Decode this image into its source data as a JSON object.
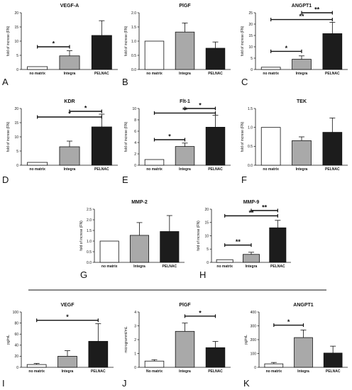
{
  "colors": {
    "no_matrix": "#ffffff",
    "integra": "#a9a9a9",
    "pelnac": "#1c1c1c",
    "ink": "#111111"
  },
  "chart_data": [
    {
      "type": "bar",
      "panel": "A",
      "title": "VEGF-A",
      "ylabel": "fold of increse (FN)",
      "categories": [
        "no matrix",
        "Integra",
        "PELNAC"
      ],
      "values": [
        1,
        4.8,
        12
      ],
      "errors": [
        0,
        1.8,
        5.2
      ],
      "ylim": [
        0,
        20
      ],
      "yticks": [
        "0",
        "5",
        "10",
        "15",
        "20"
      ],
      "significance": [
        {
          "from": 0,
          "to": 1,
          "label": "*",
          "y": 8
        }
      ]
    },
    {
      "type": "bar",
      "panel": "B",
      "title": "PlGF",
      "ylabel": "fold of increse (FN)",
      "categories": [
        "no matrix",
        "Integra",
        "PELNAC"
      ],
      "values": [
        1,
        1.32,
        0.75
      ],
      "errors": [
        0,
        0.32,
        0.22
      ],
      "ylim": [
        0,
        2
      ],
      "yticks": [
        "0.0",
        "0.5",
        "1.0",
        "1.5",
        "2.0"
      ],
      "significance": []
    },
    {
      "type": "bar",
      "panel": "C",
      "title": "ANGPT1",
      "ylabel": "fold of increse (FN)",
      "categories": [
        "no matrix",
        "Integra",
        "PELNAC"
      ],
      "values": [
        1,
        4.5,
        15.8
      ],
      "errors": [
        0,
        1.5,
        5
      ],
      "ylim": [
        0,
        25
      ],
      "yticks": [
        "0",
        "5",
        "10",
        "15",
        "20",
        "25"
      ],
      "significance": [
        {
          "from": 0,
          "to": 1,
          "label": "*",
          "y": 8
        },
        {
          "from": 0,
          "to": 2,
          "label": "**",
          "y": 22
        },
        {
          "from": 1,
          "to": 2,
          "label": "**",
          "y": 25
        }
      ]
    },
    {
      "type": "bar",
      "panel": "D",
      "title": "KDR",
      "ylabel": "fold of increse (FN)",
      "categories": [
        "no matrix",
        "Integra",
        "PELNAC"
      ],
      "values": [
        1,
        6.5,
        13.5
      ],
      "errors": [
        0,
        2,
        4.5
      ],
      "ylim": [
        0,
        20
      ],
      "yticks": [
        "0",
        "5",
        "10",
        "15",
        "20"
      ],
      "significance": [
        {
          "from": 0,
          "to": 2,
          "label": "*",
          "y": 17
        },
        {
          "from": 1,
          "to": 2,
          "label": "*",
          "y": 19
        }
      ]
    },
    {
      "type": "bar",
      "panel": "E",
      "title": "Flt-1",
      "ylabel": "fold of increse (FN)",
      "categories": [
        "no matrix",
        "Integra",
        "PELNAC"
      ],
      "values": [
        1,
        3.3,
        6.7
      ],
      "errors": [
        0,
        0.6,
        2.1
      ],
      "ylim": [
        0,
        10
      ],
      "yticks": [
        "0",
        "2",
        "4",
        "6",
        "8",
        "10"
      ],
      "significance": [
        {
          "from": 0,
          "to": 1,
          "label": "*",
          "y": 4.5
        },
        {
          "from": 0,
          "to": 2,
          "label": "**",
          "y": 9.2
        },
        {
          "from": 1,
          "to": 2,
          "label": "*",
          "y": 10
        }
      ]
    },
    {
      "type": "bar",
      "panel": "F",
      "title": "TEK",
      "ylabel": "fold of increse (FN)",
      "categories": [
        "no matrix",
        "Integra",
        "PELNAC"
      ],
      "values": [
        1,
        0.65,
        0.87
      ],
      "errors": [
        0,
        0.1,
        0.38
      ],
      "ylim": [
        0,
        1.5
      ],
      "yticks": [
        "0.0",
        "0.5",
        "1.0",
        "1.5"
      ],
      "significance": []
    },
    {
      "type": "bar",
      "panel": "G",
      "title": "MMP-2",
      "ylabel": "fold of increse (FN)",
      "categories": [
        "no matrix",
        "Integra",
        "PELNAC"
      ],
      "values": [
        1,
        1.27,
        1.45
      ],
      "errors": [
        0,
        0.6,
        0.75
      ],
      "ylim": [
        0,
        2.5
      ],
      "yticks": [
        "0.0",
        "0.5",
        "1.0",
        "1.5",
        "2.0",
        "2.5"
      ],
      "significance": []
    },
    {
      "type": "bar",
      "panel": "H",
      "title": "MMP-9",
      "ylabel": "fold of increse (FN)",
      "categories": [
        "no matrix",
        "Integra",
        "PELNAC"
      ],
      "values": [
        1,
        3,
        13
      ],
      "errors": [
        0,
        0.8,
        2.8
      ],
      "ylim": [
        0,
        20
      ],
      "yticks": [
        "0",
        "5",
        "10",
        "15",
        "20"
      ],
      "significance": [
        {
          "from": 0,
          "to": 1,
          "label": "**",
          "y": 6.5
        },
        {
          "from": 0,
          "to": 2,
          "label": "**",
          "y": 17.5
        },
        {
          "from": 1,
          "to": 2,
          "label": "**",
          "y": 19.5
        }
      ]
    },
    {
      "type": "bar",
      "panel": "I",
      "title": "VEGF",
      "ylabel": "pg/mL",
      "categories": [
        "no matrix",
        "Integra",
        "PELNAC"
      ],
      "values": [
        5,
        20,
        47
      ],
      "errors": [
        2,
        10,
        32
      ],
      "ylim": [
        0,
        100
      ],
      "yticks": [
        "0",
        "20",
        "40",
        "60",
        "80",
        "100"
      ],
      "significance": [
        {
          "from": 0,
          "to": 2,
          "label": "*",
          "y": 85
        }
      ]
    },
    {
      "type": "bar",
      "panel": "J",
      "title": "PlGF",
      "ylabel": "microgramml/mL",
      "categories": [
        "No matrix",
        "Integra",
        "PELNAC"
      ],
      "values": [
        0.45,
        2.6,
        1.42
      ],
      "errors": [
        0.1,
        0.6,
        0.45
      ],
      "ylim": [
        0,
        4
      ],
      "yticks": [
        "0",
        "1",
        "2",
        "3",
        "4"
      ],
      "significance": [
        {
          "from": 1,
          "to": 2,
          "label": "*",
          "y": 3.7
        }
      ]
    },
    {
      "type": "bar",
      "panel": "K",
      "title": "ANGPT1",
      "ylabel": "pg/mL",
      "categories": [
        "no matrix",
        "Integra",
        "PELNAC"
      ],
      "values": [
        25,
        215,
        103
      ],
      "errors": [
        10,
        55,
        50
      ],
      "ylim": [
        0,
        400
      ],
      "yticks": [
        "0",
        "100",
        "200",
        "300",
        "400"
      ],
      "significance": [
        {
          "from": 0,
          "to": 1,
          "label": "*",
          "y": 305
        }
      ]
    }
  ]
}
